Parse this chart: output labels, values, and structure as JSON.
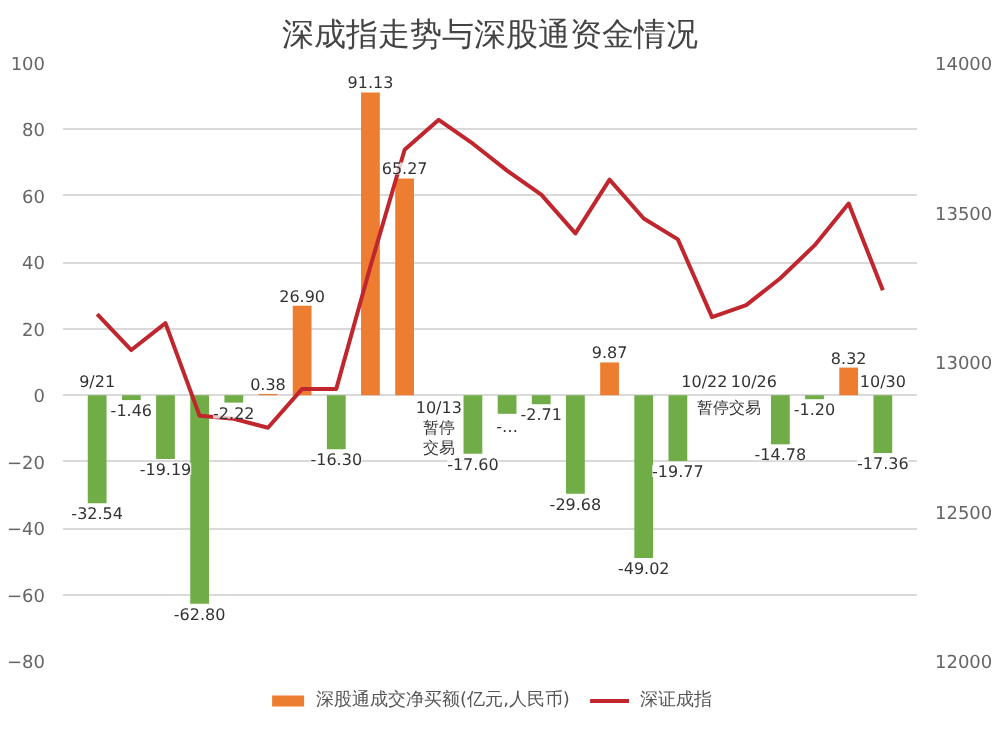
{
  "chart_data": {
    "type": "bar",
    "title": "深成指走势与深股通资金情况",
    "categories": [
      "9/21",
      null,
      null,
      null,
      null,
      null,
      null,
      null,
      null,
      null,
      "10/13",
      null,
      null,
      null,
      null,
      null,
      null,
      null,
      "10/22",
      "10/26",
      null,
      null,
      null,
      "10/30"
    ],
    "series": [
      {
        "name": "深股通成交净买额(亿元,人民币)",
        "color": "#ed7d31",
        "colors": [
          "#70ad47",
          "#70ad47",
          "#70ad47",
          "#70ad47",
          "#70ad47",
          "#ed7d31",
          "#ed7d31",
          "#70ad47",
          "#ed7d31",
          "#ed7d31",
          "#70ad47",
          "#70ad47",
          "#70ad47",
          "#70ad47",
          "#70ad47",
          "#ed7d31",
          "#70ad47",
          "#70ad47",
          "#70ad47",
          "#70ad47",
          "#70ad47",
          "#70ad47",
          "#ed7d31",
          "#70ad47"
        ],
        "values": [
          -32.54,
          -1.46,
          -19.19,
          -62.8,
          -2.22,
          0.38,
          26.9,
          -16.3,
          91.13,
          65.27,
          null,
          -17.6,
          -5.6,
          -2.71,
          -29.68,
          9.87,
          -49.02,
          -19.77,
          null,
          null,
          -14.78,
          -1.2,
          8.32,
          -17.36
        ],
        "value_labels": [
          "-32.54",
          "-1.46",
          "-19.19",
          "-62.80",
          "-2.22",
          "0.38",
          "26.90",
          "-16.30",
          "91.13",
          "65.27",
          null,
          "-17.60",
          "-…",
          "-2.71",
          "-29.68",
          "9.87",
          "-49.02",
          "-19.77",
          null,
          null,
          "-14.78",
          "-1.20",
          "8.32",
          "-17.36"
        ]
      },
      {
        "name": "深证成指",
        "type": "line",
        "axis": "y2",
        "color": "#c0262d",
        "values": [
          13160,
          13040,
          13130,
          12820,
          12810,
          12780,
          12910,
          12910,
          13320,
          13710,
          13810,
          13730,
          13640,
          13560,
          13430,
          13610,
          13480,
          13410,
          13150,
          13190,
          13280,
          13390,
          13530,
          13240
        ]
      }
    ],
    "annotations": [
      "暂停",
      "交易",
      "暂停交易"
    ],
    "ylim": [
      -80,
      100
    ],
    "yticks": [
      -80,
      -60,
      -40,
      -20,
      0,
      20,
      40,
      60,
      80,
      100
    ],
    "y2lim": [
      12000,
      14000
    ],
    "y2ticks": [
      12000,
      12500,
      13000,
      13500,
      14000
    ],
    "grid": "y",
    "legend": "bottom"
  }
}
